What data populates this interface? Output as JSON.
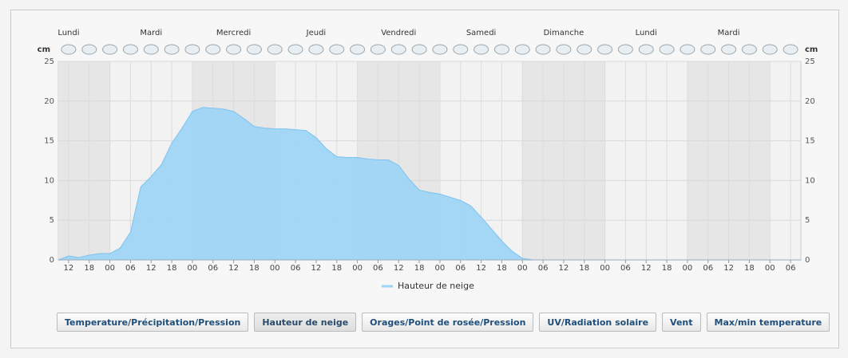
{
  "chart_data": {
    "type": "area",
    "y_label": "cm",
    "days": {
      "names": [
        "Lundi",
        "Mardi",
        "Mercredi",
        "Jeudi",
        "Vendredi",
        "Samedi",
        "Dimanche",
        "Lundi",
        "Mardi"
      ],
      "x": [
        12,
        36,
        60,
        84,
        108,
        132,
        156,
        180,
        204
      ]
    },
    "x": [
      9,
      12,
      15,
      18,
      21,
      24,
      27,
      30,
      33,
      36,
      39,
      42,
      45,
      48,
      51,
      54,
      57,
      60,
      63,
      66,
      69,
      72,
      75,
      78,
      81,
      84,
      87,
      90,
      93,
      96,
      99,
      102,
      105,
      108,
      111,
      114,
      117,
      120,
      123,
      126,
      129,
      132,
      135,
      138,
      141,
      144,
      147,
      150,
      153,
      156,
      159,
      162,
      165,
      168,
      171,
      174,
      177,
      180,
      183,
      186,
      189,
      192,
      195,
      198,
      201,
      204,
      207,
      210,
      213,
      216,
      219,
      222,
      225
    ],
    "series": [
      {
        "name": "Hauteur de neige",
        "color": "#9fd4f6",
        "values": [
          0,
          0.5,
          0.3,
          0.6,
          0.8,
          0.8,
          1.5,
          3.5,
          9.2,
          10.5,
          12,
          14.7,
          16.6,
          18.7,
          19.2,
          19.1,
          19.0,
          18.7,
          17.8,
          16.8,
          16.6,
          16.5,
          16.5,
          16.4,
          16.3,
          15.4,
          14.0,
          13.0,
          12.9,
          12.9,
          12.7,
          12.6,
          12.6,
          11.9,
          10.2,
          8.8,
          8.5,
          8.3,
          7.9,
          7.5,
          6.8,
          5.4,
          3.9,
          2.4,
          1.1,
          0.2,
          0,
          0,
          0,
          0,
          0,
          0,
          0,
          0,
          0,
          0,
          0,
          0,
          0,
          0,
          0,
          0,
          0,
          0,
          0,
          0,
          0,
          0,
          0,
          0,
          0,
          0,
          0
        ]
      }
    ],
    "xlim": [
      9,
      225
    ],
    "xticks": [
      12,
      18,
      {
        "value": 24,
        "label": "00"
      },
      {
        "value": 30,
        "label": "06"
      },
      {
        "value": 36,
        "label": "12"
      },
      {
        "value": 42,
        "label": "18"
      },
      {
        "value": 48,
        "label": "00"
      },
      {
        "value": 54,
        "label": "06"
      },
      {
        "value": 60,
        "label": "12"
      },
      {
        "value": 66,
        "label": "18"
      },
      {
        "value": 72,
        "label": "00"
      },
      {
        "value": 78,
        "label": "06"
      },
      {
        "value": 84,
        "label": "12"
      },
      {
        "value": 90,
        "label": "18"
      },
      {
        "value": 96,
        "label": "00"
      },
      {
        "value": 102,
        "label": "06"
      },
      {
        "value": 108,
        "label": "12"
      },
      {
        "value": 114,
        "label": "18"
      },
      {
        "value": 120,
        "label": "00"
      },
      {
        "value": 126,
        "label": "06"
      },
      {
        "value": 132,
        "label": "12"
      },
      {
        "value": 138,
        "label": "18"
      },
      {
        "value": 144,
        "label": "00"
      },
      {
        "value": 150,
        "label": "06"
      },
      {
        "value": 156,
        "label": "12"
      },
      {
        "value": 162,
        "label": "18"
      },
      {
        "value": 168,
        "label": "00"
      },
      {
        "value": 174,
        "label": "06"
      },
      {
        "value": 180,
        "label": "12"
      },
      {
        "value": 186,
        "label": "18"
      },
      {
        "value": 192,
        "label": "00"
      },
      {
        "value": 198,
        "label": "06"
      },
      {
        "value": 204,
        "label": "12"
      },
      {
        "value": 210,
        "label": "18"
      },
      {
        "value": 216,
        "label": "00"
      },
      {
        "value": 222,
        "label": "06"
      }
    ],
    "ylim": [
      0,
      25
    ],
    "yticks": [
      0,
      5,
      10,
      15,
      20,
      25
    ],
    "grid": true,
    "legend": "bottom",
    "buttons": [
      "Temperature/Précipitation/Pression",
      "Hauteur de neige",
      "Orages/Point de rosée/Pression",
      "UV/Radiation solaire",
      "Vent",
      "Max/min temperature"
    ]
  }
}
